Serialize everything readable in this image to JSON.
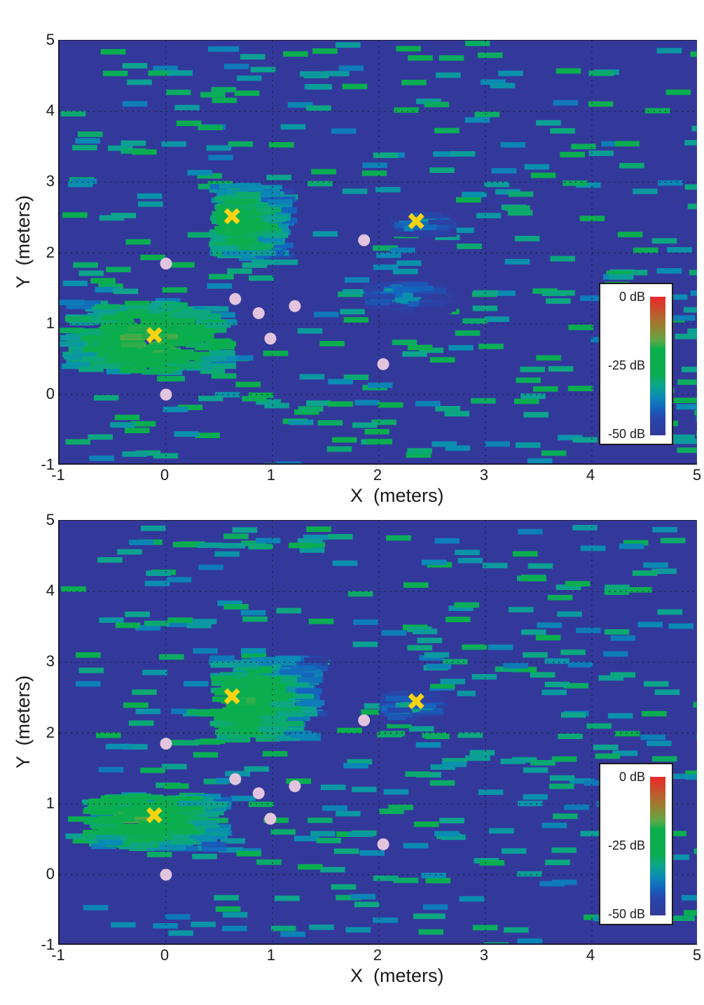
{
  "chart_data": [
    {
      "type": "heatmap",
      "title": "",
      "xlabel": "X  (meters)",
      "ylabel": "Y  (meters)",
      "xlim": [
        -1,
        5
      ],
      "ylim": [
        -1,
        5
      ],
      "xticks": [
        "-1",
        "0",
        "1",
        "2",
        "3",
        "4",
        "5"
      ],
      "yticks": [
        "5",
        "4",
        "3",
        "2",
        "1",
        "0",
        "-1"
      ],
      "grid": "dotted",
      "colorbar": {
        "labels": [
          "0 dB",
          "-25 dB",
          "-50 dB"
        ],
        "range": [
          -50,
          0
        ],
        "unit": "dB",
        "position": "lower-right inset"
      },
      "x_markers": [
        {
          "x": 0.62,
          "y": 2.52
        },
        {
          "x": -0.11,
          "y": 0.84
        },
        {
          "x": 2.35,
          "y": 2.45
        }
      ],
      "circle_markers": [
        {
          "x": 0.0,
          "y": 1.85
        },
        {
          "x": 0.65,
          "y": 1.35
        },
        {
          "x": 0.87,
          "y": 1.15
        },
        {
          "x": 1.21,
          "y": 1.25
        },
        {
          "x": 0.98,
          "y": 0.79
        },
        {
          "x": 1.86,
          "y": 2.18
        },
        {
          "x": 2.04,
          "y": 0.43
        },
        {
          "x": 0.0,
          "y": 0.0
        }
      ],
      "hotspots": [
        {
          "x": 0.6,
          "y": 2.45,
          "peak_db": -15,
          "extent": [
            0.4,
            1.0,
            2.0,
            3.0
          ]
        },
        {
          "x": -0.25,
          "y": 0.82,
          "peak_db": -12,
          "extent": [
            -1.0,
            0.45,
            0.35,
            1.35
          ]
        },
        {
          "x": 2.1,
          "y": 1.45,
          "peak_db": -28,
          "extent": [
            1.85,
            2.5,
            1.2,
            1.6
          ]
        },
        {
          "x": 2.3,
          "y": 2.45,
          "peak_db": -28,
          "extent": [
            2.1,
            2.5,
            2.3,
            2.6
          ]
        }
      ]
    },
    {
      "type": "heatmap",
      "title": "",
      "xlabel": "X  (meters)",
      "ylabel": "Y  (meters)",
      "xlim": [
        -1,
        5
      ],
      "ylim": [
        -1,
        5
      ],
      "xticks": [
        "-1",
        "0",
        "1",
        "2",
        "3",
        "4",
        "5"
      ],
      "yticks": [
        "5",
        "4",
        "3",
        "2",
        "1",
        "0",
        "-1"
      ],
      "grid": "dotted",
      "colorbar": {
        "labels": [
          "0 dB",
          "-25 dB",
          "-50 dB"
        ],
        "range": [
          -50,
          0
        ],
        "unit": "dB",
        "position": "lower-right inset"
      },
      "x_markers": [
        {
          "x": 0.62,
          "y": 2.52
        },
        {
          "x": -0.11,
          "y": 0.84
        },
        {
          "x": 2.35,
          "y": 2.45
        }
      ],
      "circle_markers": [
        {
          "x": 0.0,
          "y": 1.85
        },
        {
          "x": 0.65,
          "y": 1.35
        },
        {
          "x": 0.87,
          "y": 1.15
        },
        {
          "x": 1.21,
          "y": 1.25
        },
        {
          "x": 0.98,
          "y": 0.79
        },
        {
          "x": 1.86,
          "y": 2.18
        },
        {
          "x": 2.04,
          "y": 0.43
        },
        {
          "x": 0.0,
          "y": 0.0
        }
      ],
      "hotspots": [
        {
          "x": 0.65,
          "y": 2.45,
          "peak_db": -14,
          "extent": [
            0.4,
            1.3,
            1.95,
            3.1
          ]
        },
        {
          "x": -0.3,
          "y": 0.83,
          "peak_db": -12,
          "extent": [
            -0.8,
            0.4,
            0.4,
            1.15
          ]
        },
        {
          "x": 2.2,
          "y": 2.4,
          "peak_db": -28,
          "extent": [
            2.0,
            2.5,
            2.2,
            2.6
          ]
        }
      ]
    }
  ],
  "colors": {
    "background": "#33399a",
    "low": "#33399a",
    "mid": "#0aae4c",
    "high": "#e8282a",
    "x_marker": "#f7d312",
    "circle_marker": "#e3c4de"
  },
  "labels": {
    "xlabel": "X  (meters)",
    "ylabel": "Y  (meters)",
    "cb_top": "0 dB",
    "cb_mid": "-25 dB",
    "cb_bot": "-50 dB",
    "xticks": [
      "-1",
      "0",
      "1",
      "2",
      "3",
      "4",
      "5"
    ],
    "yticks": [
      "5",
      "4",
      "3",
      "2",
      "1",
      "0",
      "-1"
    ]
  }
}
